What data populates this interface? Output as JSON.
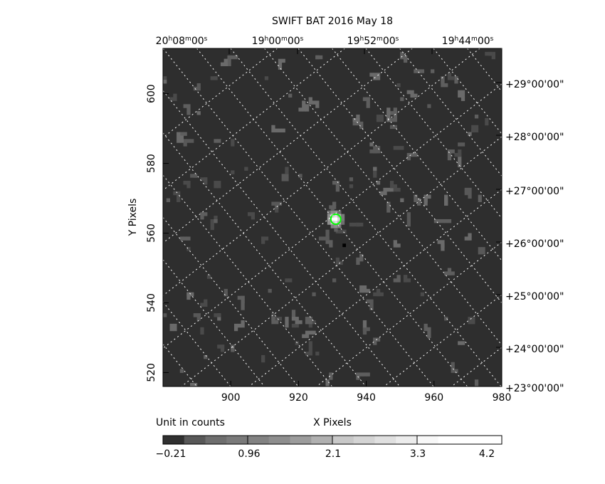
{
  "chart_data": {
    "type": "heatmap",
    "title": "SWIFT BAT   2016 May 18",
    "xlabel": "X Pixels",
    "ylabel": "Y Pixels",
    "xlim": [
      880,
      980
    ],
    "ylim": [
      516,
      613
    ],
    "x_ticks": [
      "900",
      "920",
      "940",
      "960",
      "980"
    ],
    "x_tick_values": [
      900,
      920,
      940,
      960,
      980
    ],
    "y_ticks": [
      "520",
      "540",
      "560",
      "580",
      "600"
    ],
    "y_tick_values": [
      520,
      540,
      560,
      580,
      600
    ],
    "ra_ticks": [
      {
        "h": "20",
        "m": "08",
        "s": "00"
      },
      {
        "h": "19",
        "m": "00",
        "s": "00"
      },
      {
        "h": "19",
        "m": "52",
        "s": "00"
      },
      {
        "h": "19",
        "m": "44",
        "s": "00"
      }
    ],
    "dec_ticks": [
      "+29°00'00\"",
      "+28°00'00\"",
      "+27°00'00\"",
      "+26°00'00\"",
      "+25°00'00\"",
      "+24°00'00\"",
      "+23°00'00\""
    ],
    "grid": true,
    "source": {
      "x": 931,
      "y": 564,
      "marker_color": "#00ff00"
    },
    "colorbar": {
      "label": "Unit in counts",
      "tick_labels": [
        "−0.21",
        "0.96",
        "2.1",
        "3.3",
        "4.2"
      ],
      "colors": [
        "#303030",
        "#585858",
        "#6e6e6e",
        "#7a7a7a",
        "#828282",
        "#8e8e8e",
        "#9c9c9c",
        "#b0b0b0",
        "#c8c8c8",
        "#d4d4d4",
        "#e0e0e0",
        "#ececec",
        "#f8f8f8",
        "#ffffff",
        "#ffffff",
        "#ffffff"
      ]
    },
    "background_color": "#2e2e2e"
  }
}
